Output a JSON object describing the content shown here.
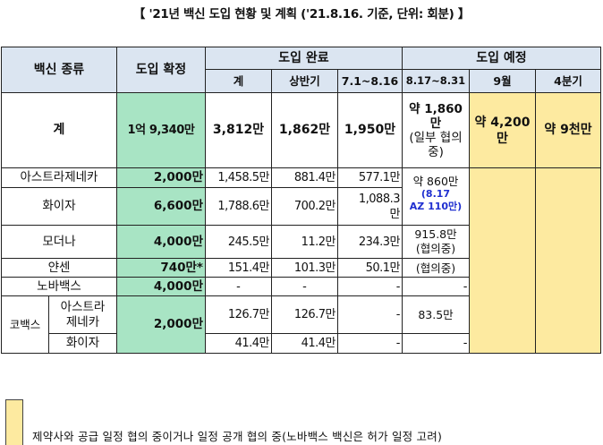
{
  "title": "【 '21년 백신 도입 현황 및 계획 ('21.8.16. 기준, 단위: 회분) 】",
  "headers": {
    "vaccine_type": "백신 종류",
    "confirmed": "도입 확정",
    "completed": "도입 완료",
    "planned": "도입 예정",
    "sub": {
      "total": "계",
      "first_half": "상반기",
      "jul_aug": "7.1~8.16",
      "aug_end": "8.17~8.31",
      "sep": "9월",
      "q4": "4분기"
    }
  },
  "rows": {
    "total": {
      "name": "계",
      "confirmed": "1억 9,340만",
      "total": "3,812만",
      "first_half": "1,862만",
      "jul_aug": "1,950만",
      "aug_end_lines": [
        "약 1,860",
        "만",
        "(일부 협의",
        "중)"
      ],
      "sep_lines": [
        "약 4,200",
        "만"
      ],
      "q4": "약 9천만"
    },
    "az": {
      "name": "아스트라제네카",
      "confirmed": "2,000만",
      "total": "1,458.5만",
      "first_half": "881.4만",
      "jul_aug": "577.1만",
      "aug_end": "약 860만"
    },
    "pfizer": {
      "name": "화이자",
      "confirmed": "6,600만",
      "total": "1,788.6만",
      "first_half": "700.2만",
      "jul_aug_lines": [
        "1,088.3",
        "만"
      ],
      "note_lines": [
        "(8.17",
        "AZ 110만)"
      ]
    },
    "moderna": {
      "name": "모더나",
      "confirmed": "4,000만",
      "total": "245.5만",
      "first_half": "11.2만",
      "jul_aug": "234.3만",
      "aug_end_lines": [
        "915.8만",
        "(협의중)"
      ]
    },
    "janssen": {
      "name": "얀센",
      "confirmed": "740만*",
      "total": "151.4만",
      "first_half": "101.3만",
      "jul_aug": "50.1만",
      "aug_end": "(협의중)"
    },
    "novavax": {
      "name": "노바백스",
      "confirmed": "4,000만",
      "total": "-",
      "first_half": "-",
      "jul_aug": "-",
      "aug_end": "-"
    },
    "covax": {
      "group": "코백스",
      "confirmed": "2,000만",
      "az": {
        "name_lines": [
          "아스트라",
          "제네카"
        ],
        "total": "126.7만",
        "first_half": "126.7만",
        "jul_aug": "-",
        "aug_end": "83.5만"
      },
      "pfizer": {
        "name": "화이자",
        "total": "41.4만",
        "first_half": "41.4만",
        "jul_aug": "-",
        "aug_end": "-"
      }
    }
  },
  "legend": {
    "color": "#fdeaa0",
    "text": "제약사와 공급 일정 협의 중이거나 일정 공개 협의 중(노바백스 백신은 허가 일정 고려)"
  },
  "colors": {
    "header_bg": "#dbe5f1",
    "confirmed_bg": "#a8e4c4",
    "planned_bg": "#fdeaa0",
    "note_text": "#1f2fd0"
  }
}
